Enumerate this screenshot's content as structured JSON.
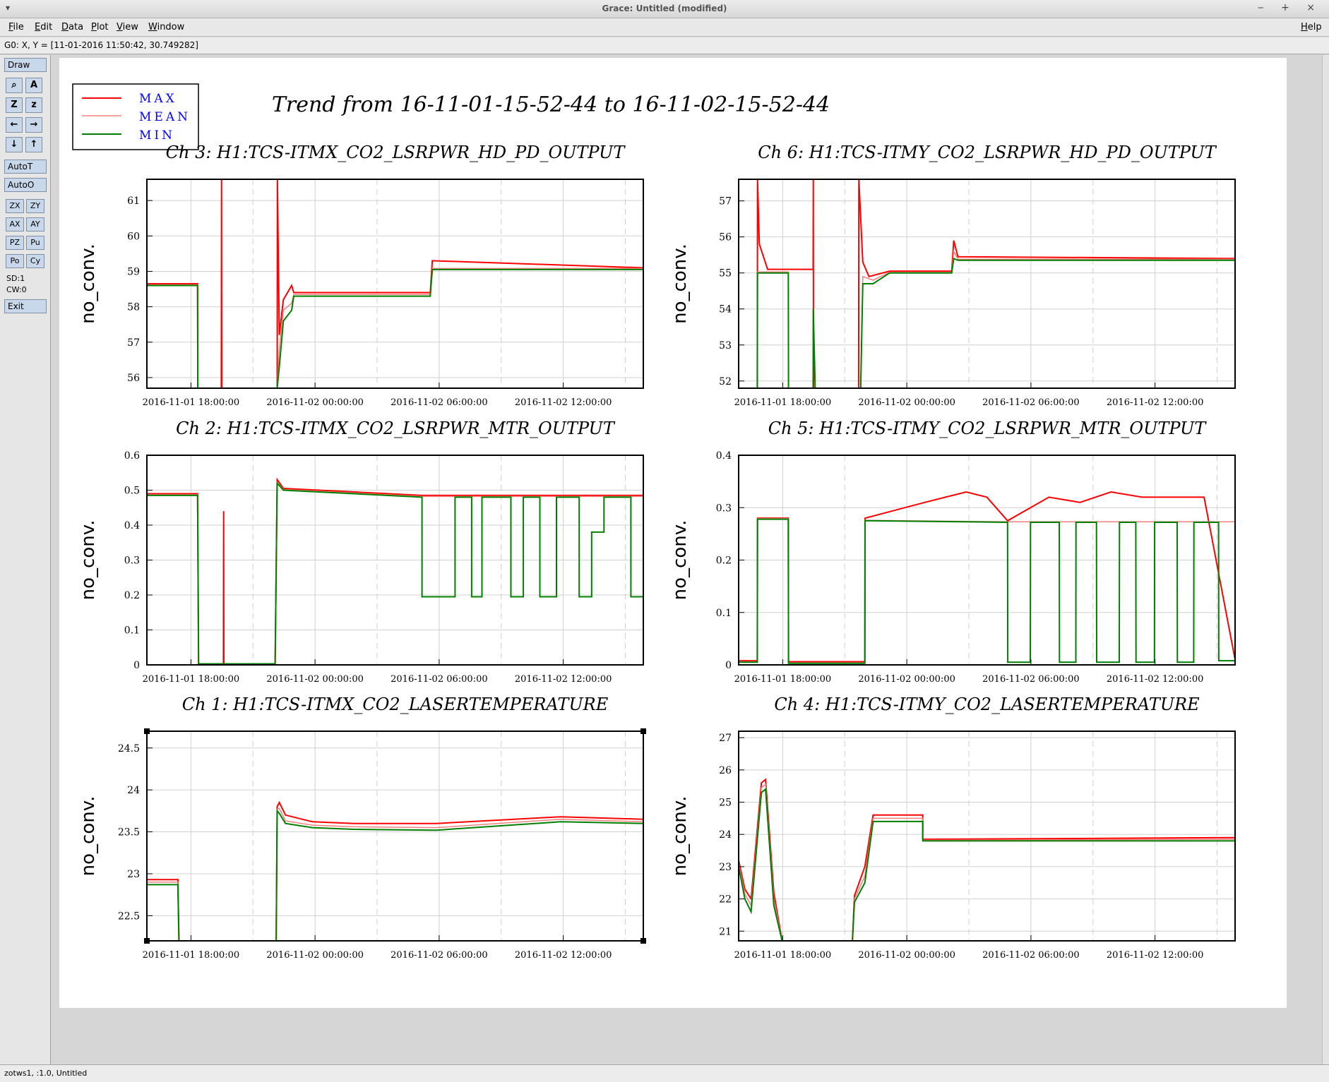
{
  "window": {
    "title": "Grace: Untitled (modified)",
    "menu_glyph": "▾",
    "controls": "‒ + ×"
  },
  "menu": {
    "file": "File",
    "edit": "Edit",
    "data": "Data",
    "plot": "Plot",
    "view": "View",
    "window": "Window",
    "help": "Help"
  },
  "locator": "G0: X, Y = [11-01-2016 11:50:42, 30.749282]",
  "toolbar": {
    "draw": "Draw",
    "autot": "AutoT",
    "autoo": "AutoO",
    "zx": "ZX",
    "zy": "ZY",
    "ax": "AX",
    "ay": "AY",
    "pz": "PZ",
    "pu": "Pu",
    "po": "Po",
    "cy": "Cy",
    "sd": "SD:1",
    "cw": "CW:0",
    "exit": "Exit"
  },
  "status": "zotws1, :1.0, Untitled",
  "main_title": "Trend from 16-11-01-15-52-44 to 16-11-02-15-52-44",
  "legend": [
    {
      "label": "MAX",
      "color": "#ff0000"
    },
    {
      "label": "MEAN",
      "color": "#ff8080"
    },
    {
      "label": "MIN",
      "color": "#008000"
    }
  ],
  "colors": {
    "max": "#ff0000",
    "mean": "#f08080",
    "min": "#008000",
    "legend_text": "#0000ff"
  },
  "chart_data": [
    {
      "type": "line",
      "title": "Ch 3: H1:TCS-ITMX_CO2_LSRPWR_HD_PD_OUTPUT",
      "ylabel": "no_conv.",
      "ylim": [
        55.7,
        61.6
      ],
      "yticks": [
        56,
        57,
        58,
        59,
        60,
        61
      ],
      "xticks": [
        "2016-11-01 18:00:00",
        "2016-11-02 00:00:00",
        "2016-11-02 06:00:00",
        "2016-11-02 12:00:00"
      ],
      "series": [
        {
          "name": "MIN",
          "x": [
            0,
            2.45,
            2.46,
            6.3,
            6.4,
            6.6,
            7,
            7.1,
            13.7,
            13.8,
            24
          ],
          "y": [
            58.6,
            58.6,
            55.7,
            55.7,
            56.3,
            57.6,
            57.9,
            58.3,
            58.3,
            59.05,
            59.05
          ]
        },
        {
          "name": "MAX",
          "x": [
            0,
            2.45,
            2.46,
            3.6,
            3.61,
            3.62,
            6.3,
            6.31,
            6.4,
            6.6,
            7,
            7.1,
            13.7,
            13.8,
            24
          ],
          "y": [
            58.65,
            58.65,
            55.7,
            55.7,
            61.6,
            55.7,
            55.7,
            61.6,
            57.2,
            58.2,
            58.6,
            58.4,
            58.4,
            59.3,
            59.1
          ]
        },
        {
          "name": "MEAN",
          "x": [
            0,
            2.45,
            2.46,
            6.3,
            6.4,
            6.6,
            7,
            7.1,
            13.7,
            13.8,
            24
          ],
          "y": [
            58.62,
            58.62,
            55.7,
            55.7,
            56.8,
            57.9,
            58.1,
            58.35,
            58.35,
            59.08,
            59.08
          ]
        }
      ]
    },
    {
      "type": "line",
      "title": "Ch 6: H1:TCS-ITMY_CO2_LSRPWR_HD_PD_OUTPUT",
      "ylabel": "no_conv.",
      "ylim": [
        51.8,
        57.6
      ],
      "yticks": [
        52,
        53,
        54,
        55,
        56,
        57
      ],
      "xticks": [
        "2016-11-01 18:00:00",
        "2016-11-02 00:00:00",
        "2016-11-02 06:00:00",
        "2016-11-02 12:00:00"
      ],
      "series": [
        {
          "name": "MIN",
          "x": [
            0,
            0.9,
            0.91,
            1.4,
            2.4,
            2.41,
            3.6,
            3.61,
            3.7,
            5.9,
            6.0,
            6.5,
            7.3,
            10.3,
            10.4,
            10.6,
            24
          ],
          "y": [
            51.8,
            51.8,
            55.0,
            55.0,
            55.0,
            51.8,
            51.8,
            54.0,
            51.8,
            51.8,
            54.7,
            54.7,
            55.0,
            55.0,
            55.4,
            55.35,
            55.35
          ]
        },
        {
          "name": "MAX",
          "x": [
            0,
            0.9,
            0.91,
            1.0,
            1.4,
            3.6,
            3.61,
            3.62,
            5.8,
            5.81,
            6.0,
            6.3,
            7.3,
            10.3,
            10.4,
            10.6,
            24
          ],
          "y": [
            51.8,
            51.8,
            57.6,
            55.8,
            55.1,
            55.1,
            57.6,
            51.8,
            51.8,
            57.6,
            55.3,
            54.9,
            55.05,
            55.05,
            55.9,
            55.45,
            55.4
          ]
        },
        {
          "name": "MEAN",
          "x": [
            0,
            0.9,
            0.91,
            2.4,
            2.41,
            5.9,
            6.0,
            6.5,
            7.3,
            10.3,
            10.4,
            10.6,
            24
          ],
          "y": [
            51.8,
            51.8,
            55.03,
            55.03,
            51.8,
            51.8,
            54.9,
            54.8,
            55.02,
            55.02,
            55.6,
            55.38,
            55.38
          ]
        }
      ]
    },
    {
      "type": "line",
      "title": "Ch 2: H1:TCS-ITMX_CO2_LSRPWR_MTR_OUTPUT",
      "ylabel": "no_conv.",
      "ylim": [
        0,
        0.6
      ],
      "yticks": [
        0,
        0.1,
        0.2,
        0.3,
        0.4,
        0.5,
        0.6
      ],
      "xticks": [
        "2016-11-01 18:00:00",
        "2016-11-02 00:00:00",
        "2016-11-02 06:00:00",
        "2016-11-02 12:00:00"
      ],
      "series": [
        {
          "name": "MIN",
          "x": [
            0,
            2.45,
            2.5,
            6.2,
            6.3,
            6.6,
            13.3,
            13.3,
            14.9,
            14.9,
            15.7,
            15.7,
            16.2,
            16.2,
            17.6,
            17.6,
            18.2,
            18.2,
            19.0,
            19.0,
            19.8,
            19.8,
            20.9,
            20.9,
            21.5,
            21.5,
            22.1,
            22.1,
            23.4,
            23.4,
            24
          ],
          "y": [
            0.485,
            0.485,
            0.003,
            0.003,
            0.52,
            0.5,
            0.48,
            0.195,
            0.195,
            0.48,
            0.48,
            0.195,
            0.195,
            0.48,
            0.48,
            0.195,
            0.195,
            0.48,
            0.48,
            0.195,
            0.195,
            0.48,
            0.48,
            0.195,
            0.195,
            0.38,
            0.38,
            0.48,
            0.48,
            0.195,
            0.195
          ]
        },
        {
          "name": "MAX",
          "x": [
            0,
            2.45,
            2.5,
            3.7,
            3.71,
            3.72,
            6.2,
            6.3,
            6.6,
            13.3,
            24
          ],
          "y": [
            0.49,
            0.49,
            0.003,
            0.003,
            0.44,
            0.003,
            0.003,
            0.53,
            0.505,
            0.485,
            0.485
          ]
        },
        {
          "name": "MEAN",
          "x": [
            0,
            2.45,
            2.5,
            6.2,
            6.3,
            6.6,
            13.3,
            24
          ],
          "y": [
            0.487,
            0.487,
            0.003,
            0.003,
            0.522,
            0.502,
            0.482,
            0.482
          ]
        }
      ]
    },
    {
      "type": "line",
      "title": "Ch 5: H1:TCS-ITMY_CO2_LSRPWR_MTR_OUTPUT",
      "ylabel": "no_conv.",
      "ylim": [
        0,
        0.4
      ],
      "yticks": [
        0,
        0.1,
        0.2,
        0.3,
        0.4
      ],
      "xticks": [
        "2016-11-01 18:00:00",
        "2016-11-02 00:00:00",
        "2016-11-02 06:00:00",
        "2016-11-02 12:00:00"
      ],
      "series": [
        {
          "name": "MIN",
          "x": [
            0,
            0.9,
            0.91,
            2.4,
            2.41,
            6.1,
            6.11,
            13.0,
            13.01,
            14.1,
            14.11,
            15.5,
            15.51,
            16.3,
            16.31,
            17.3,
            17.31,
            18.4,
            18.41,
            19.2,
            19.21,
            20.1,
            20.11,
            21.2,
            21.21,
            22.0,
            22.01,
            23.2,
            23.21,
            24
          ],
          "y": [
            0.005,
            0.005,
            0.278,
            0.278,
            0.003,
            0.003,
            0.275,
            0.272,
            0.005,
            0.005,
            0.272,
            0.272,
            0.005,
            0.005,
            0.272,
            0.272,
            0.005,
            0.005,
            0.272,
            0.272,
            0.005,
            0.005,
            0.272,
            0.272,
            0.005,
            0.005,
            0.272,
            0.272,
            0.008,
            0.008
          ]
        },
        {
          "name": "MAX",
          "x": [
            0,
            0.9,
            0.91,
            2.4,
            2.41,
            6.1,
            6.11,
            9.0,
            10.0,
            11.0,
            12.0,
            13.0,
            15.0,
            16.5,
            18.0,
            19.5,
            21.0,
            22.5,
            24
          ],
          "y": [
            0.008,
            0.008,
            0.28,
            0.28,
            0.006,
            0.006,
            0.28,
            0.31,
            0.32,
            0.33,
            0.32,
            0.275,
            0.32,
            0.31,
            0.33,
            0.32,
            0.32,
            0.32,
            0.01
          ]
        },
        {
          "name": "MEAN",
          "x": [
            0,
            0.9,
            0.91,
            2.4,
            2.41,
            6.1,
            6.11,
            13.0,
            24
          ],
          "y": [
            0.006,
            0.006,
            0.279,
            0.279,
            0.004,
            0.004,
            0.276,
            0.273,
            0.273
          ]
        }
      ]
    },
    {
      "type": "line",
      "title": "Ch 1: H1:TCS-ITMX_CO2_LASERTEMPERATURE",
      "ylabel": "no_conv.",
      "ylim": [
        22.2,
        24.7
      ],
      "yticks": [
        22.5,
        23,
        23.5,
        24,
        24.5
      ],
      "xticks": [
        "2016-11-01 18:00:00",
        "2016-11-02 00:00:00",
        "2016-11-02 06:00:00",
        "2016-11-02 12:00:00"
      ],
      "series": [
        {
          "name": "MIN",
          "x": [
            0,
            1.5,
            1.55,
            6.25,
            6.3,
            6.4,
            6.7,
            8,
            10,
            14,
            20,
            24
          ],
          "y": [
            22.87,
            22.87,
            22.2,
            22.2,
            23.75,
            23.72,
            23.6,
            23.55,
            23.53,
            23.52,
            23.62,
            23.6
          ]
        },
        {
          "name": "MAX",
          "x": [
            0,
            1.5,
            1.55,
            6.25,
            6.3,
            6.4,
            6.7,
            8,
            10,
            14,
            20,
            24
          ],
          "y": [
            22.93,
            22.93,
            22.2,
            22.2,
            23.8,
            23.85,
            23.7,
            23.62,
            23.6,
            23.6,
            23.68,
            23.65
          ]
        },
        {
          "name": "MEAN",
          "x": [
            0,
            1.5,
            1.55,
            6.25,
            6.3,
            6.4,
            6.7,
            8,
            10,
            14,
            20,
            24
          ],
          "y": [
            22.9,
            22.9,
            22.2,
            22.2,
            23.77,
            23.78,
            23.63,
            23.58,
            23.56,
            23.55,
            23.65,
            23.62
          ]
        }
      ]
    },
    {
      "type": "line",
      "title": "Ch 4: H1:TCS-ITMY_CO2_LASERTEMPERATURE",
      "ylabel": "no_conv.",
      "ylim": [
        20.7,
        27.2
      ],
      "yticks": [
        21,
        22,
        23,
        24,
        25,
        26,
        27
      ],
      "xticks": [
        "2016-11-01 18:00:00",
        "2016-11-02 00:00:00",
        "2016-11-02 06:00:00",
        "2016-11-02 12:00:00"
      ],
      "series": [
        {
          "name": "MIN",
          "x": [
            0,
            0.3,
            0.6,
            1.1,
            1.3,
            1.7,
            2.1,
            5.5,
            5.6,
            6.1,
            6.5,
            8.9,
            8.9,
            24
          ],
          "y": [
            23.0,
            22.0,
            21.6,
            25.3,
            25.4,
            21.8,
            20.7,
            20.7,
            21.9,
            22.5,
            24.4,
            24.4,
            23.8,
            23.8
          ]
        },
        {
          "name": "MAX",
          "x": [
            0,
            0.3,
            0.6,
            1.1,
            1.3,
            1.7,
            2.1,
            5.5,
            5.6,
            6.1,
            6.5,
            8.9,
            8.9,
            24
          ],
          "y": [
            23.2,
            22.3,
            22.0,
            25.6,
            25.7,
            22.2,
            20.7,
            20.7,
            22.1,
            23.0,
            24.6,
            24.6,
            23.85,
            23.9
          ]
        },
        {
          "name": "MEAN",
          "x": [
            0,
            0.3,
            0.6,
            1.1,
            1.3,
            1.7,
            2.1,
            5.5,
            5.6,
            6.1,
            6.5,
            8.9,
            8.9,
            24
          ],
          "y": [
            23.1,
            22.15,
            21.8,
            25.45,
            25.55,
            22.0,
            20.7,
            20.7,
            22.0,
            22.7,
            24.5,
            24.5,
            23.82,
            23.85
          ]
        }
      ]
    }
  ]
}
